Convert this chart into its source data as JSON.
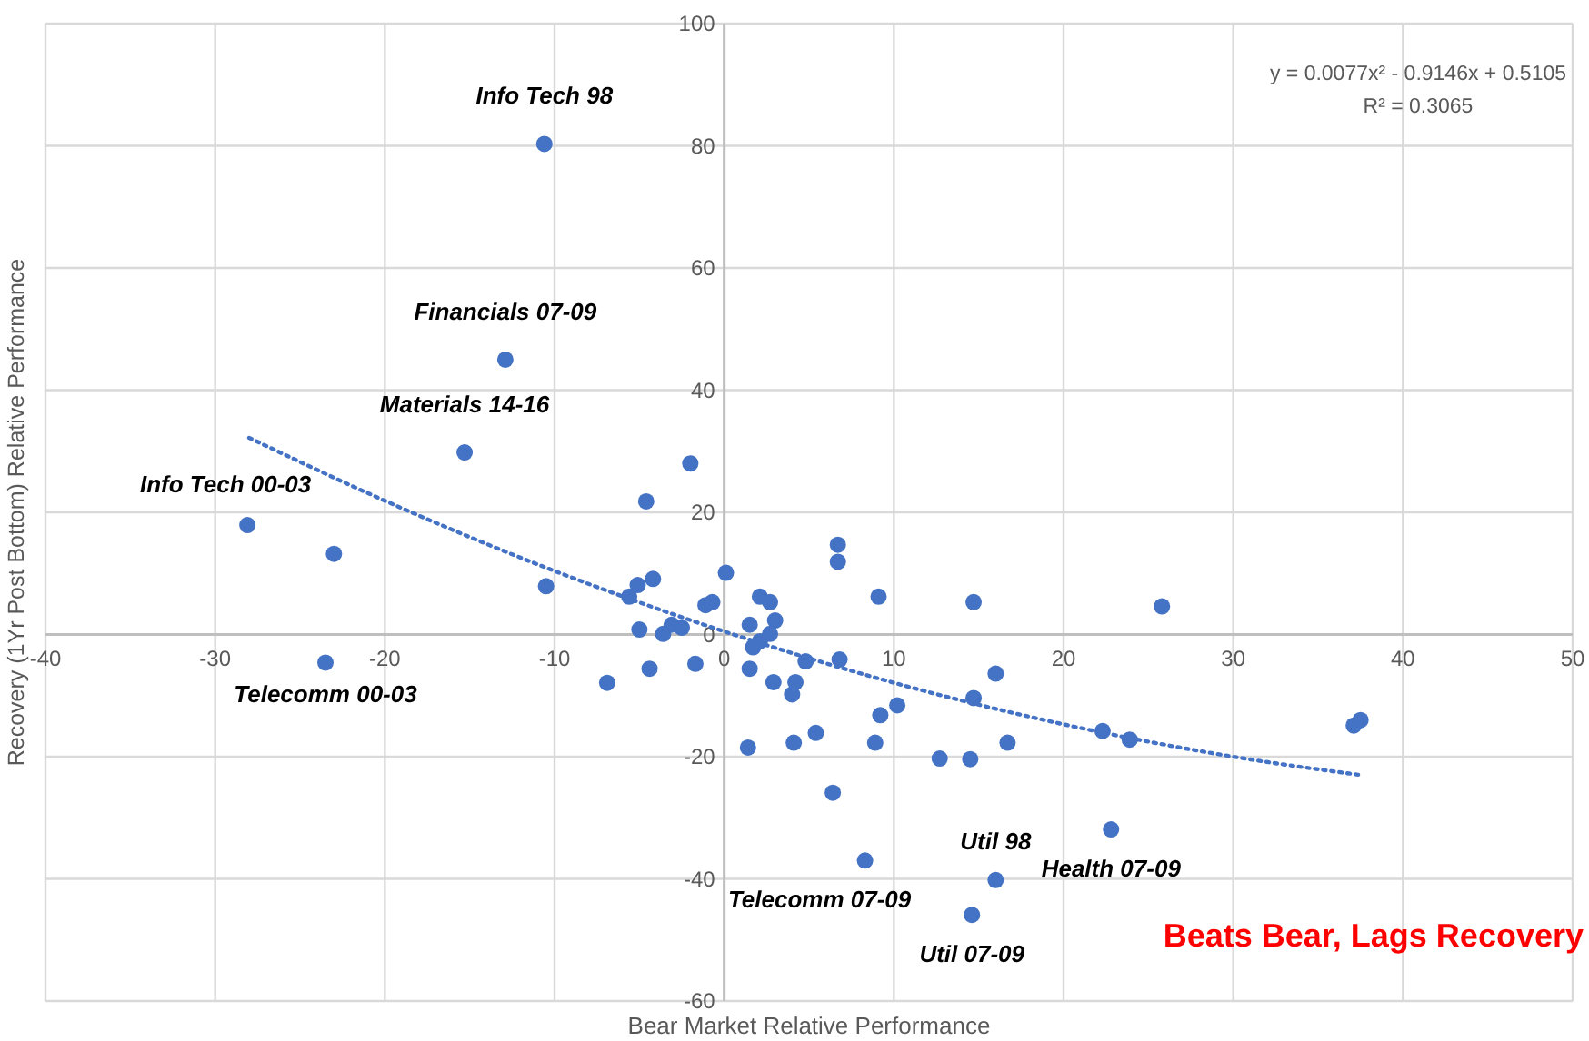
{
  "chart_data": {
    "type": "scatter",
    "xlabel": "Bear Market Relative Performance",
    "ylabel": "Recovery (1Yr Post Bottom) Relative Performance",
    "xlim": [
      -40,
      50
    ],
    "xticks": [
      -40,
      -30,
      -20,
      -10,
      0,
      10,
      20,
      30,
      40,
      50
    ],
    "ylim": [
      -60,
      100
    ],
    "yticks": [
      -60,
      -40,
      -20,
      0,
      20,
      40,
      60,
      80,
      100
    ],
    "grid": true,
    "series": [
      {
        "color": "#4472c4",
        "marker": "circle",
        "x": [
          -10.6,
          -12.9,
          -15.3,
          -28.1,
          -23.0,
          -23.5,
          -10.5,
          -4.6,
          -2.0,
          -5.6,
          -5.1,
          -4.2,
          -5.0,
          -3.6,
          -3.1,
          -2.5,
          0.1,
          -1.1,
          -0.7,
          -6.9,
          -4.4,
          -1.7,
          1.5,
          1.7,
          2.1,
          2.1,
          2.7,
          3.0,
          2.7,
          1.5,
          1.4,
          2.9,
          4.2,
          4.0,
          4.1,
          4.8,
          5.4,
          6.7,
          6.7,
          6.8,
          6.4,
          8.3,
          9.1,
          8.9,
          9.2,
          10.2,
          12.7,
          14.7,
          14.7,
          14.5,
          16.0,
          16.7,
          16.0,
          14.6,
          25.8,
          22.3,
          23.9,
          22.8,
          37.1,
          37.5
        ],
        "values": [
          80.3,
          45,
          29.8,
          17.9,
          13.2,
          -4.6,
          7.9,
          21.8,
          28,
          6.2,
          8.1,
          9.1,
          0.8,
          0.1,
          1.6,
          1.1,
          10.1,
          4.8,
          5.3,
          -7.9,
          -5.6,
          -4.8,
          1.6,
          -2.1,
          -1.1,
          6.2,
          5.3,
          2.3,
          0.1,
          -5.6,
          -18.5,
          -7.8,
          -7.8,
          -9.8,
          -17.7,
          -4.4,
          -16.1,
          14.7,
          11.9,
          -4.1,
          -25.9,
          -37.0,
          6.2,
          -17.7,
          -13.2,
          -11.6,
          -20.3,
          5.3,
          -10.4,
          -20.4,
          -6.4,
          -17.7,
          -40.2,
          -45.9,
          4.6,
          -15.8,
          -17.2,
          -31.9,
          -14.9,
          -14.0
        ]
      },
      {
        "type": "line",
        "color": "#4472c4",
        "line_style": "dotted",
        "marker": "none",
        "x": [
          -28,
          -20,
          -10,
          0,
          10,
          20,
          30,
          37.5
        ],
        "values": [
          32.2,
          21.9,
          10.4,
          0.5,
          -7.9,
          -14.7,
          -20.0,
          -23.0
        ]
      }
    ],
    "annotations": [
      {
        "text": "Info Tech 98",
        "x": -10.6,
        "y": 80.3
      },
      {
        "text": "Financials  07-09",
        "x": -12.9,
        "y": 45
      },
      {
        "text": "Materials 14-16",
        "x": -15.3,
        "y": 29.8
      },
      {
        "text": "Info Tech 00-03",
        "x": -28.1,
        "y": 17.9
      },
      {
        "text": "Telecomm 00-03",
        "x": -23.5,
        "y": -4.6
      },
      {
        "text": "Telecomm 07-09",
        "x": 8.3,
        "y": -37.0
      },
      {
        "text": "Util 98",
        "x": 16.0,
        "y": -40.2
      },
      {
        "text": "Util 07-09",
        "x": 14.6,
        "y": -45.9
      },
      {
        "text": "Health 07-09",
        "x": 22.8,
        "y": -31.9
      },
      "y = 0.0077x² - 0.9146x + 0.5105",
      "R² = 0.3065",
      "Beats Bear, Lags Recovery"
    ]
  }
}
